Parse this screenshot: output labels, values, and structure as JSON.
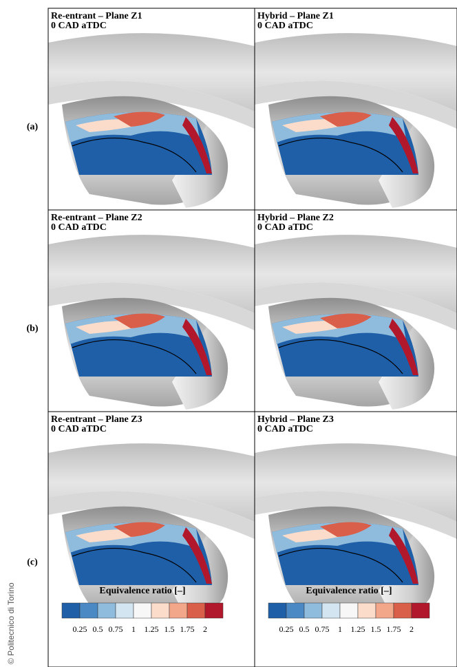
{
  "figure": {
    "row_labels": [
      "(a)",
      "(b)",
      "(c)"
    ],
    "panels": [
      {
        "title": "Re-entrant – Plane Z1",
        "subtitle": "0 CAD aTDC"
      },
      {
        "title": "Hybrid – Plane Z1",
        "subtitle": "0 CAD aTDC"
      },
      {
        "title": "Re-entrant – Plane Z2",
        "subtitle": "0 CAD aTDC"
      },
      {
        "title": "Hybrid – Plane Z2",
        "subtitle": "0 CAD aTDC"
      },
      {
        "title": "Re-entrant – Plane Z3",
        "subtitle": "0 CAD aTDC"
      },
      {
        "title": "Hybrid – Plane Z3",
        "subtitle": "0 CAD aTDC"
      }
    ],
    "colorbars": [
      {
        "title": "Equivalence ratio [–]",
        "ticks": [
          0.25,
          0.5,
          0.75,
          1,
          1.25,
          1.5,
          1.75,
          2
        ]
      },
      {
        "title": "Equivalence ratio [–]",
        "ticks": [
          0.25,
          0.5,
          0.75,
          1,
          1.25,
          1.5,
          1.75,
          2
        ]
      }
    ],
    "colors": [
      "#1f5fa8",
      "#4a89c4",
      "#8fbbdc",
      "#d3e5f0",
      "#f7f7f7",
      "#fbdccb",
      "#f2a68a",
      "#d95f4a",
      "#b2182b"
    ],
    "copyright": "© Politecnico di Torino"
  }
}
